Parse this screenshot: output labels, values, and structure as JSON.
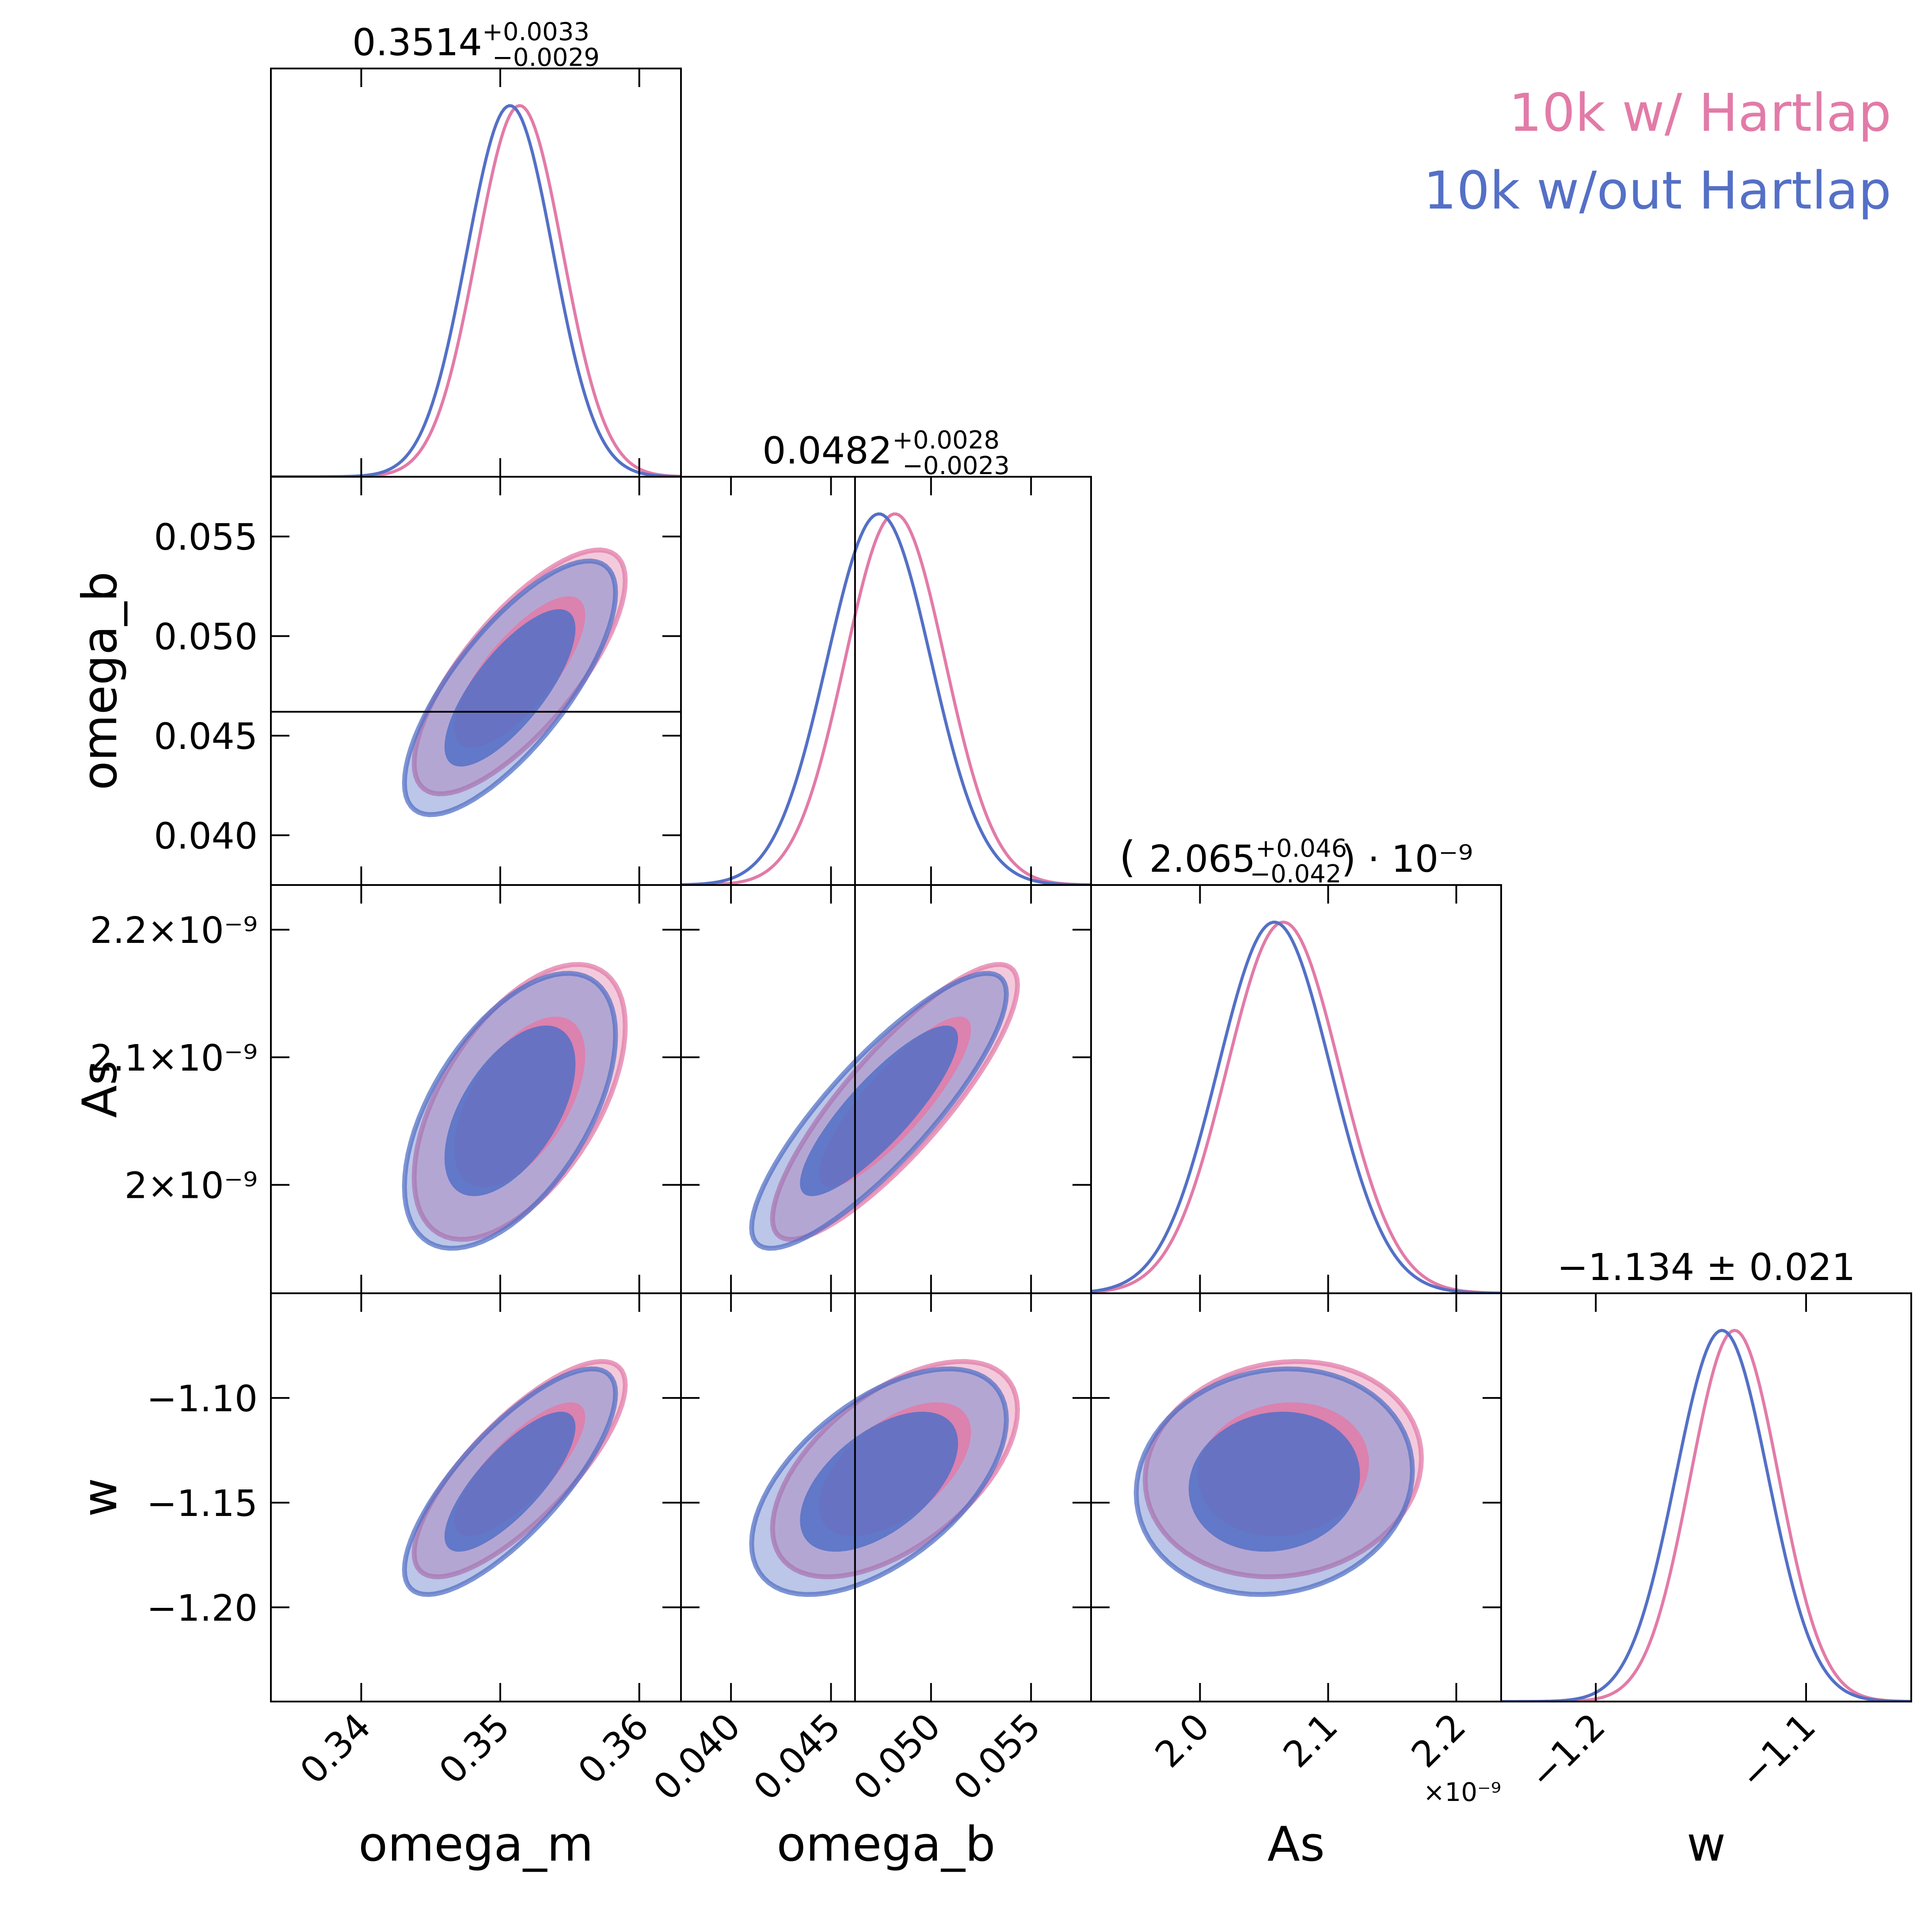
{
  "chart_data": {
    "type": "corner",
    "parameters": [
      {
        "name": "omega_m",
        "label": "omega_m",
        "ticks": [
          "0.34",
          "0.35",
          "0.36"
        ],
        "range": [
          0.3335,
          0.363
        ],
        "summary": "0.3514",
        "err_plus": "+0.0033",
        "err_minus": "−0.0029"
      },
      {
        "name": "omega_b",
        "label": "omega_b",
        "ticks": [
          "0.040",
          "0.045",
          "0.050",
          "0.055"
        ],
        "range": [
          0.0375,
          0.058
        ],
        "truth": 0.0462,
        "summary": "0.0482",
        "err_plus": "+0.0028",
        "err_minus": "−0.0023"
      },
      {
        "name": "As",
        "label": "As",
        "ticks": [
          "2.0",
          "2.1",
          "2.2"
        ],
        "y_ticks": [
          "2.2×10⁻⁹",
          "2.1×10⁻⁹",
          "2×10⁻⁹"
        ],
        "offset_label": "×10⁻⁹",
        "range": [
          1.915,
          2.235
        ],
        "summary": "2.065",
        "err_plus": "+0.046",
        "err_minus": "−0.042",
        "summary_prefix": "(",
        "summary_suffix": ") · 10⁻⁹"
      },
      {
        "name": "w",
        "label": "w",
        "ticks": [
          "−1.2",
          "−1.1"
        ],
        "y_ticks": [
          "−1.10",
          "−1.15",
          "−1.20"
        ],
        "range": [
          -1.245,
          -1.05
        ],
        "summary_text": "−1.134 ± 0.021"
      }
    ],
    "series": [
      {
        "name": "10k w/ Hartlap",
        "color": "#e27ba8",
        "means": [
          0.3514,
          0.0482,
          2.065,
          -1.134
        ],
        "sigmas": [
          0.0031,
          0.0025,
          0.044,
          0.021
        ],
        "corr": [
          [
            1,
            0.75,
            0.55,
            0.78
          ],
          [
            0.75,
            1,
            0.85,
            0.55
          ],
          [
            0.55,
            0.85,
            1,
            0.1
          ],
          [
            0.78,
            0.55,
            0.1,
            1
          ]
        ]
      },
      {
        "name": "10k w/out Hartlap",
        "color": "#5470c6",
        "means": [
          0.3507,
          0.0474,
          2.058,
          -1.14
        ],
        "sigmas": [
          0.0031,
          0.0026,
          0.044,
          0.022
        ],
        "corr": [
          [
            1,
            0.75,
            0.55,
            0.78
          ],
          [
            0.75,
            1,
            0.85,
            0.55
          ],
          [
            0.55,
            0.85,
            1,
            0.1
          ],
          [
            0.78,
            0.55,
            0.1,
            1
          ]
        ]
      }
    ],
    "y_tick_values": {
      "omega_b": [
        0.055,
        0.05,
        0.045,
        0.04
      ],
      "As": [
        2.2,
        2.1,
        2.0
      ],
      "w": [
        -1.1,
        -1.15,
        -1.2
      ]
    },
    "x_tick_values": {
      "omega_m": [
        0.34,
        0.35,
        0.36
      ],
      "omega_b": [
        0.04,
        0.045,
        0.05,
        0.055
      ],
      "As": [
        2.0,
        2.1,
        2.2
      ],
      "w": [
        -1.2,
        -1.1
      ]
    },
    "omega_b_y_ticks": [
      "0.055",
      "0.050",
      "0.045",
      "0.040"
    ],
    "legend": {
      "position": "top-right",
      "entries": [
        "10k w/ Hartlap",
        "10k w/out Hartlap"
      ]
    }
  }
}
